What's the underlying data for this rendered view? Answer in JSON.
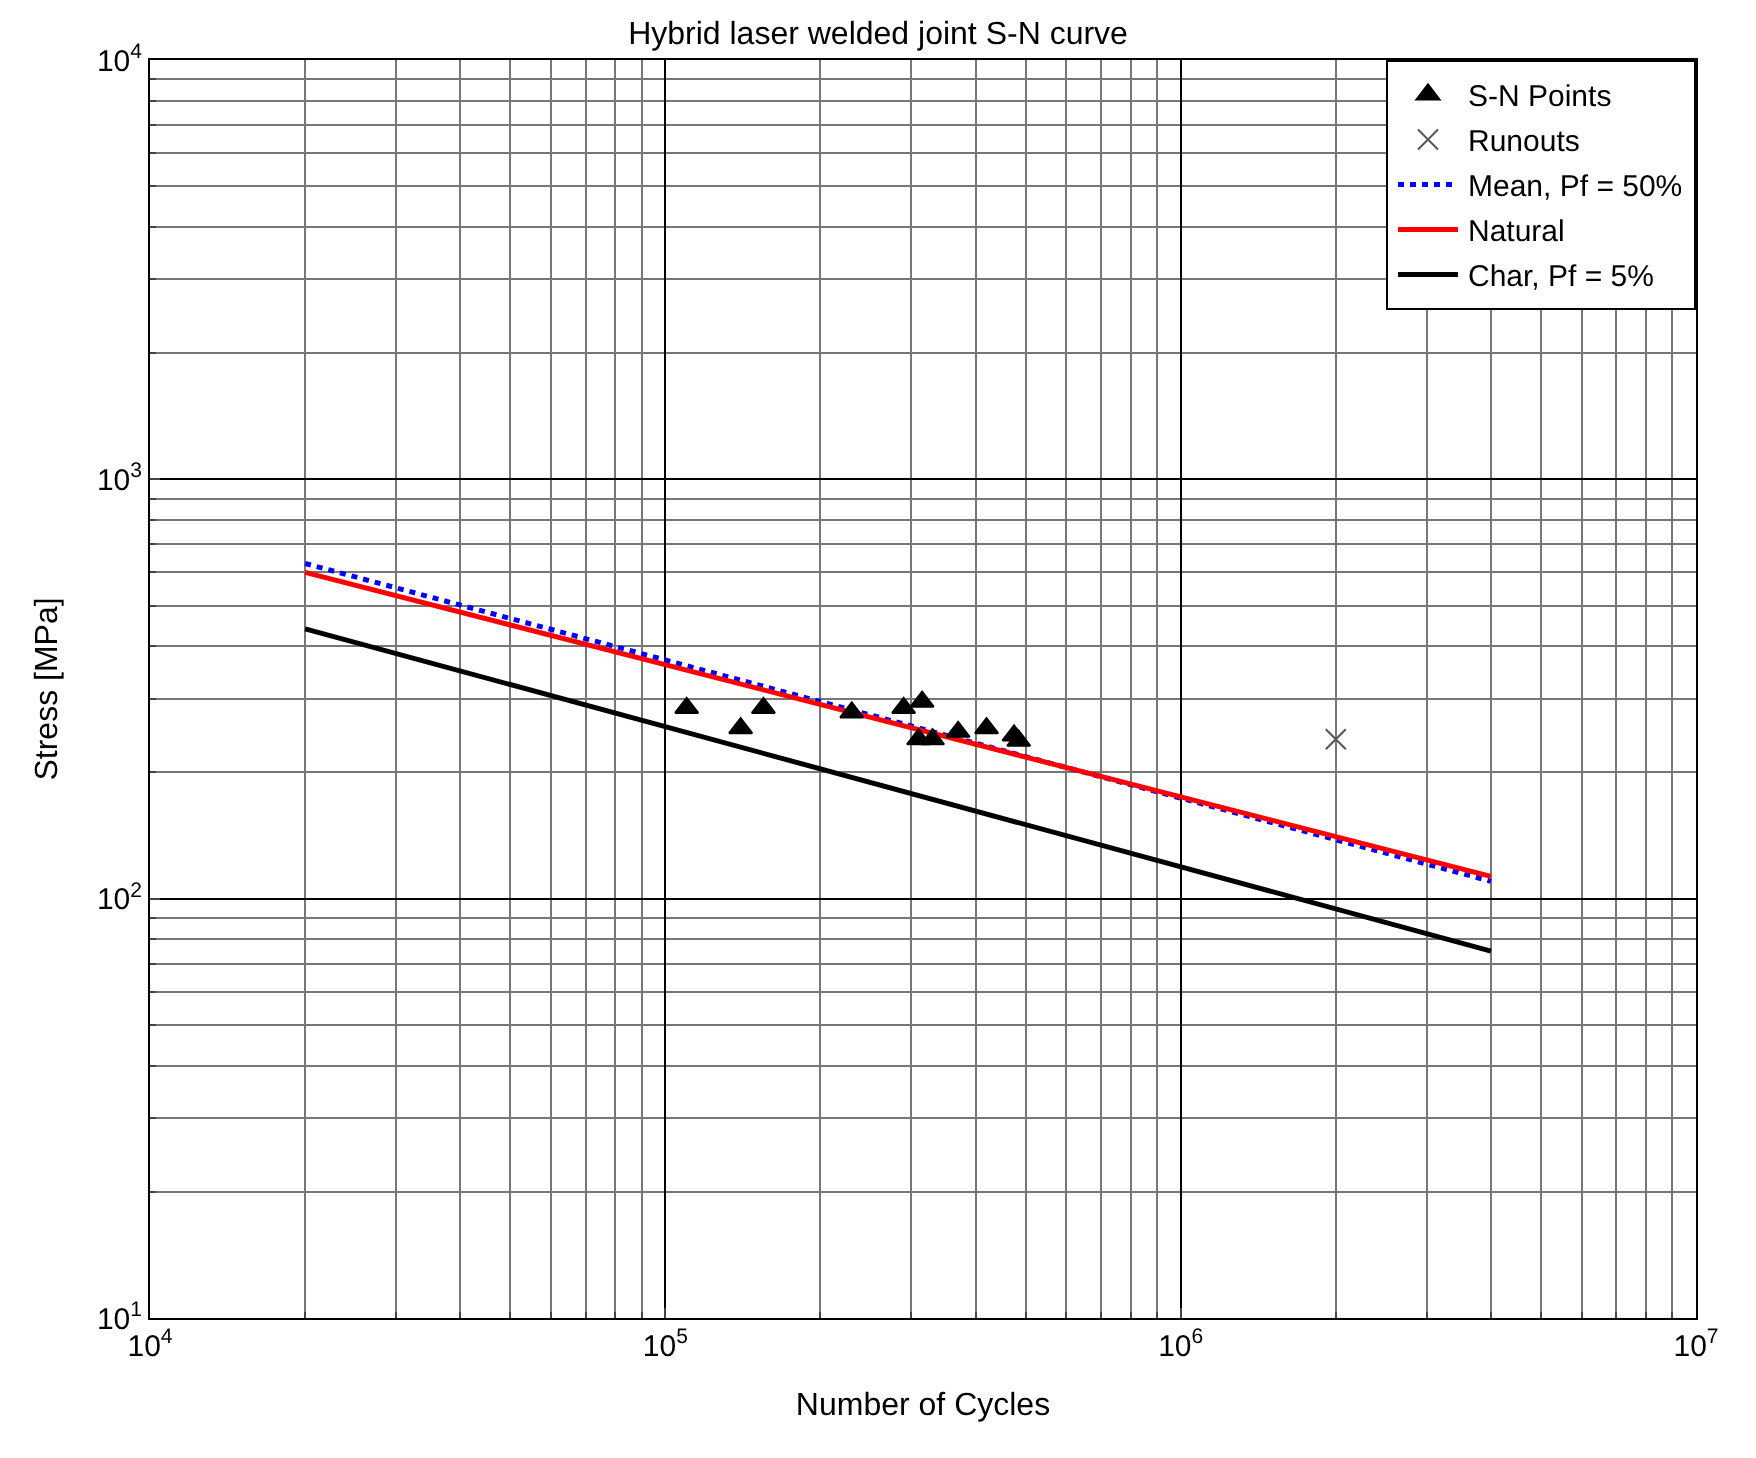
{
  "chart_data": {
    "type": "scatter",
    "title": "Hybrid laser welded joint S-N curve",
    "xlabel": "Number of Cycles",
    "ylabel": "Stress [MPa]",
    "log": "xy",
    "grid": true,
    "legend": "top right",
    "xlim": [
      10000,
      10000000
    ],
    "ylim": [
      10,
      10000
    ],
    "xticks": [
      {
        "value": 10000,
        "label": "10$^{4}$"
      },
      {
        "value": 100000,
        "label": "10$^{5}$"
      },
      {
        "value": 1000000,
        "label": "10$^{6}$"
      },
      {
        "value": 10000000,
        "label": "10$^{7}$"
      }
    ],
    "yticks": [
      {
        "value": 10,
        "label": "10$^{1}$"
      },
      {
        "value": 100,
        "label": "10$^{2}$"
      },
      {
        "value": 1000,
        "label": "10$^{3}$"
      },
      {
        "value": 10000,
        "label": "10$^{4}$"
      }
    ],
    "series": [
      {
        "name": "S-N Points",
        "marker": "triangle",
        "color": "#000000",
        "x": [
          110000,
          140000,
          155000,
          230000,
          290000,
          315000,
          310000,
          330000,
          370000,
          420000,
          475000,
          485000
        ],
        "values": [
          285,
          255,
          285,
          278,
          285,
          295,
          240,
          240,
          250,
          255,
          245,
          238
        ]
      },
      {
        "name": "Runouts",
        "marker": "cross",
        "color": "#555555",
        "x": [
          2000000
        ],
        "values": [
          240
        ]
      },
      {
        "name": "Mean, Pf = 50%",
        "type": "line",
        "line_style": "dotted",
        "color": "#0000ff",
        "x": [
          20000,
          4000000
        ],
        "values": [
          630,
          110
        ]
      },
      {
        "name": "Natural",
        "type": "line",
        "line_style": "solid",
        "color": "#ff0000",
        "x": [
          20000,
          4000000
        ],
        "values": [
          600,
          113
        ]
      },
      {
        "name": "Char, Pf = 5%",
        "type": "line",
        "line_style": "solid",
        "color": "#000000",
        "x": [
          20000,
          4000000
        ],
        "values": [
          440,
          75
        ]
      }
    ]
  }
}
